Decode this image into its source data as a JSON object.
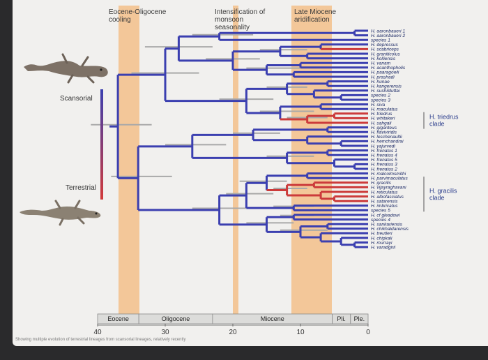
{
  "time_bands": [
    {
      "label": "Eocene-Oligocene\ncooling",
      "from": 35,
      "to": 33,
      "color": "#f3c08a"
    },
    {
      "label": "Intensification of\nmonsoon\nseasonality",
      "from": 20,
      "to": 19.5,
      "color": "#f3c08a"
    },
    {
      "label": "Late Miocene\naridification",
      "from": 11,
      "to": 5,
      "color": "#f3c08a"
    }
  ],
  "legend": {
    "top_label": "Scansorial",
    "bottom_label": "Terrestrial",
    "top_color": "#3b3fb0",
    "bottom_color": "#d23a3a"
  },
  "tips": [
    "H. aaronbaueri 1",
    "H. aaronbaueri 2",
    "species 1",
    "H. depressus",
    "H. scabriceps",
    "H. graniticolus",
    "H. kolliensis",
    "H. vanam",
    "H. acanthopholis",
    "H. paaragowli",
    "H. prashadi",
    "H. hunae",
    "H. kangerensis",
    "H. sushilduttai",
    "species 2",
    "species 3",
    "H. siva",
    "H. maculatus",
    "H. triedrus",
    "H. whitakeri",
    "H. sahgali",
    "H. giganteus",
    "H. flaviviridis",
    "H. leschenaultii",
    "H. hemchandrai",
    "H. yajurvedi",
    "H. frenatus 1",
    "H. frenatus 4",
    "H. frenatus 5",
    "H. frenatus 3",
    "H. frenatus 2",
    "H. malcolmsmithi",
    "H. parvimaculatus",
    "H. gracilis",
    "H. vijayraghavani",
    "H. reticulatus",
    "H. albofasciatus",
    "H. satarensis",
    "H. imbricatus",
    "species 5",
    "H. cf gleadowi",
    "species 4",
    "H. sankariensis",
    "H. chikhaldarensis",
    "H. treutleri",
    "H. chipkali",
    "H. murrayi",
    "H. varadgirii"
  ],
  "clades": [
    {
      "label": "H. triedrus\nclade",
      "from_tip": 18,
      "to_tip": 21
    },
    {
      "label": "H. gracilis\nclade",
      "from_tip": 32,
      "to_tip": 39
    }
  ],
  "epochs": [
    {
      "label": "Eocene",
      "from": 40,
      "to": 33.9
    },
    {
      "label": "Oligocene",
      "from": 33.9,
      "to": 23
    },
    {
      "label": "Miocene",
      "from": 23,
      "to": 5.3
    },
    {
      "label": "Pli.",
      "from": 5.3,
      "to": 2.6
    },
    {
      "label": "Ple.",
      "from": 2.6,
      "to": 0
    }
  ],
  "axis": {
    "ticks": [
      "40",
      "30",
      "20",
      "10",
      "0"
    ]
  },
  "caption": "Showing multiple evolution of terrestrial lineages from scansorial lineages, relatively recently",
  "colors": {
    "branch_scansorial": "#3b3fb0",
    "branch_terrestrial": "#cc3b3b",
    "band": "#f3c08a",
    "error_bar": "#a9a9a9",
    "paper": "#f1f0ee"
  }
}
